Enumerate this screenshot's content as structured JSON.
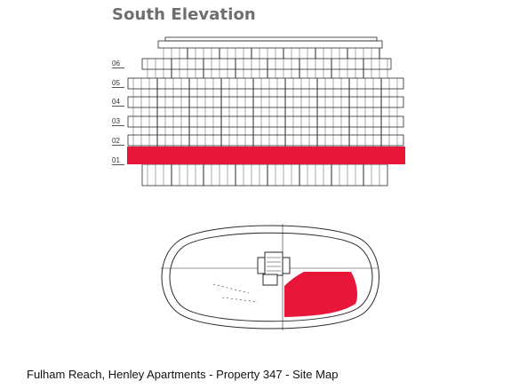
{
  "title": "South Elevation",
  "levels": [
    "06",
    "05",
    "04",
    "03",
    "02",
    "01"
  ],
  "caption": "Fulham Reach, Henley Apartments - Property 347 - Site Map",
  "colors": {
    "highlight": "#e8173a",
    "line": "#2a2a2a",
    "title": "#6d6e71"
  }
}
